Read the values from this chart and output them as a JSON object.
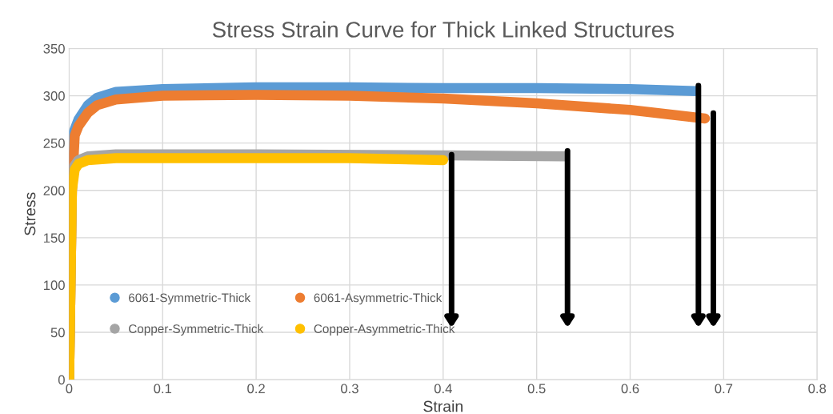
{
  "chart_data": {
    "type": "line",
    "title": "Stress Strain Curve for Thick Linked Structures",
    "xlabel": "Strain",
    "ylabel": "Stress",
    "xlim": [
      0,
      0.8
    ],
    "xticks": [
      0,
      0.1,
      0.2,
      0.3,
      0.4,
      0.5,
      0.6,
      0.7,
      0.8
    ],
    "ylim": [
      0,
      350
    ],
    "yticks": [
      0,
      50,
      100,
      150,
      200,
      250,
      300,
      350
    ],
    "grid": true,
    "legend": "bottom left",
    "marker": "none",
    "line_style": "solid",
    "series": [
      {
        "name": "6061-Symmetric-Thick",
        "color": "#5b9bd5",
        "x": [
          0,
          0.002,
          0.005,
          0.01,
          0.02,
          0.03,
          0.05,
          0.1,
          0.2,
          0.3,
          0.4,
          0.5,
          0.6,
          0.67
        ],
        "values": [
          0,
          200,
          262,
          275,
          290,
          298,
          304,
          307,
          309,
          309,
          308,
          308,
          307,
          305
        ]
      },
      {
        "name": "6061-Asymmetric-Thick",
        "color": "#ed7d31",
        "x": [
          0,
          0.003,
          0.006,
          0.01,
          0.02,
          0.03,
          0.05,
          0.1,
          0.2,
          0.3,
          0.4,
          0.5,
          0.6,
          0.68
        ],
        "values": [
          0,
          200,
          258,
          268,
          282,
          290,
          296,
          300,
          301,
          300,
          297,
          292,
          285,
          276
        ]
      },
      {
        "name": "Copper-Symmetric-Thick",
        "color": "#a5a5a5",
        "x": [
          0,
          0.003,
          0.005,
          0.01,
          0.02,
          0.05,
          0.2,
          0.4,
          0.53
        ],
        "values": [
          0,
          200,
          225,
          232,
          236,
          238,
          238,
          237,
          236
        ]
      },
      {
        "name": "Copper-Asymmetric-Thick",
        "color": "#ffc000",
        "x": [
          0,
          0.003,
          0.006,
          0.01,
          0.02,
          0.05,
          0.2,
          0.3,
          0.4
        ],
        "values": [
          0,
          200,
          222,
          228,
          232,
          234,
          234,
          234,
          232
        ]
      }
    ]
  }
}
